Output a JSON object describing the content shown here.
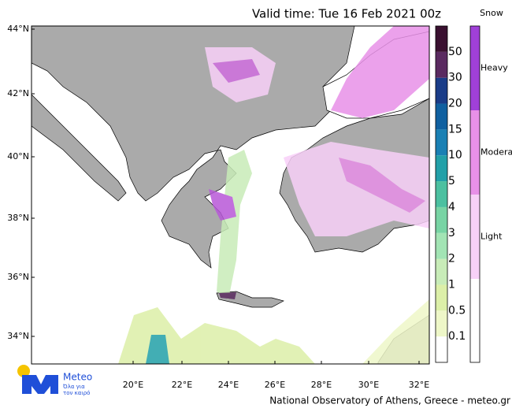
{
  "title": "Valid time: Tue 16 Feb 2021 00z",
  "latitude_labels": [
    "44°N",
    "42°N",
    "40°N",
    "38°N",
    "36°N",
    "34°N"
  ],
  "longitude_labels": [
    "20°E",
    "22°E",
    "24°E",
    "26°E",
    "28°E",
    "30°E",
    "32°E"
  ],
  "rain_scale": [
    "0.1",
    "0.5",
    "1",
    "2",
    "3",
    "4",
    "5",
    "10",
    "15",
    "20",
    "30",
    "50"
  ],
  "snow_scale": {
    "title": "Snow",
    "levels": [
      "Light",
      "Moderate",
      "Heavy"
    ]
  },
  "footer": "National Observatory of Athens, Greece - meteo.gr",
  "logo": {
    "name": "Meteo",
    "tagline": [
      "Όλα για",
      "τον καιρό"
    ]
  }
}
